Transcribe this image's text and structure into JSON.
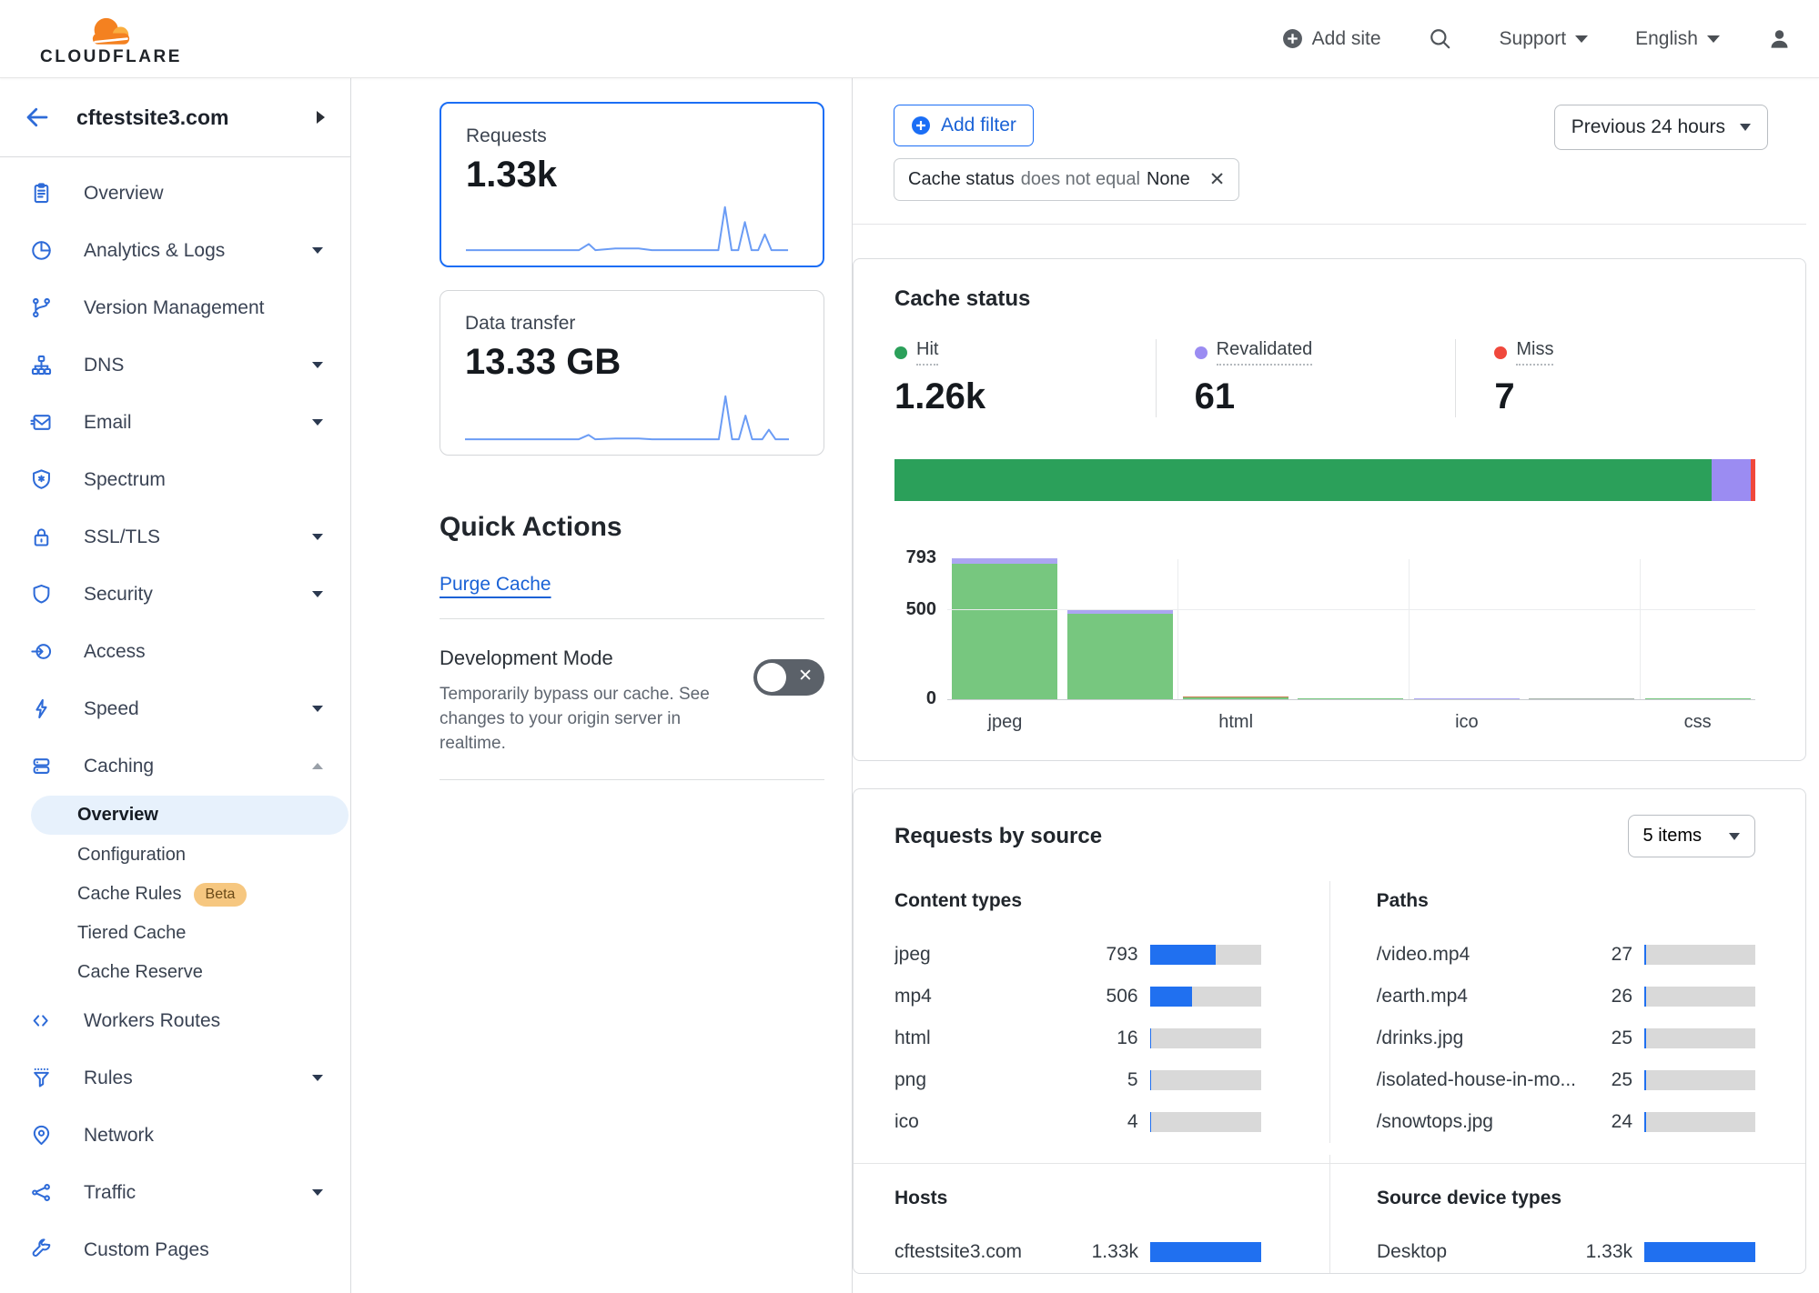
{
  "topnav": {
    "brand": "CLOUDFLARE",
    "add_site": "Add site",
    "support": "Support",
    "language": "English"
  },
  "sidebar": {
    "site_name": "cftestsite3.com",
    "items": [
      {
        "label": "Overview"
      },
      {
        "label": "Analytics & Logs"
      },
      {
        "label": "Version Management"
      },
      {
        "label": "DNS"
      },
      {
        "label": "Email"
      },
      {
        "label": "Spectrum"
      },
      {
        "label": "SSL/TLS"
      },
      {
        "label": "Security"
      },
      {
        "label": "Access"
      },
      {
        "label": "Speed"
      },
      {
        "label": "Caching"
      },
      {
        "label": "Workers Routes"
      },
      {
        "label": "Rules"
      },
      {
        "label": "Network"
      },
      {
        "label": "Traffic"
      },
      {
        "label": "Custom Pages"
      }
    ],
    "caching_children": [
      {
        "label": "Overview",
        "selected": true
      },
      {
        "label": "Configuration"
      },
      {
        "label": "Cache Rules",
        "badge": "Beta"
      },
      {
        "label": "Tiered Cache"
      },
      {
        "label": "Cache Reserve"
      }
    ]
  },
  "overview_cards": {
    "requests": {
      "label": "Requests",
      "value": "1.33k"
    },
    "data_transfer": {
      "label": "Data transfer",
      "value": "13.33 GB"
    }
  },
  "quick_actions": {
    "title": "Quick Actions",
    "purge_cache_label": "Purge Cache",
    "development_mode": {
      "title": "Development Mode",
      "description": "Temporarily bypass our cache. See changes to your origin server in realtime.",
      "state": "off"
    }
  },
  "filter_bar": {
    "add_filter_label": "Add filter",
    "chip": {
      "field": "Cache status",
      "operator": "does not equal",
      "value": "None"
    },
    "time_range_label": "Previous 24 hours"
  },
  "cache_status": {
    "title": "Cache status",
    "total": 1330,
    "stats": [
      {
        "label": "Hit",
        "value_display": "1.26k",
        "value": 1262,
        "color": "#2ba05a"
      },
      {
        "label": "Revalidated",
        "value_display": "61",
        "value": 61,
        "color": "#9b8cf2"
      },
      {
        "label": "Miss",
        "value_display": "7",
        "value": 7,
        "color": "#f0483c"
      }
    ]
  },
  "requests_by_source": {
    "title": "Requests by source",
    "items_dropdown_label": "5 items",
    "total_requests": 1330,
    "content_types": {
      "title": "Content types",
      "rows": [
        {
          "label": "jpeg",
          "value": 793
        },
        {
          "label": "mp4",
          "value": 506
        },
        {
          "label": "html",
          "value": 16
        },
        {
          "label": "png",
          "value": 5
        },
        {
          "label": "ico",
          "value": 4
        }
      ]
    },
    "paths": {
      "title": "Paths",
      "rows": [
        {
          "label": "/video.mp4",
          "value": 27
        },
        {
          "label": "/earth.mp4",
          "value": 26
        },
        {
          "label": "/drinks.jpg",
          "value": 25
        },
        {
          "label": "/isolated-house-in-mo...",
          "value": 25
        },
        {
          "label": "/snowtops.jpg",
          "value": 24
        }
      ]
    },
    "hosts": {
      "title": "Hosts",
      "rows": [
        {
          "label": "cftestsite3.com",
          "value_display": "1.33k",
          "value": 1330
        }
      ]
    },
    "device_types": {
      "title": "Source device types",
      "rows": [
        {
          "label": "Desktop",
          "value_display": "1.33k",
          "value": 1330
        }
      ]
    }
  },
  "chart_data": [
    {
      "type": "stacked-bar-horizontal",
      "title": "Cache status",
      "total": 1330,
      "series": [
        {
          "name": "Hit",
          "value": 1262,
          "color": "#2ba05a"
        },
        {
          "name": "Revalidated",
          "value": 61,
          "color": "#9b8cf2"
        },
        {
          "name": "Miss",
          "value": 7,
          "color": "#f0483c"
        }
      ]
    },
    {
      "type": "bar",
      "title": "Cache status by content type",
      "ylim": [
        0,
        793
      ],
      "yticks": [
        0,
        500,
        793
      ],
      "x_tick_labels": [
        "jpeg",
        "",
        "html",
        "",
        "ico",
        "",
        "css"
      ],
      "bars": [
        {
          "x": "jpeg",
          "segments": [
            {
              "name": "Hit",
              "value": 763,
              "color": "#77c77f"
            },
            {
              "name": "Revalidated",
              "value": 30,
              "color": "#aba6f2"
            }
          ]
        },
        {
          "x": "mp4",
          "segments": [
            {
              "name": "Hit",
              "value": 481,
              "color": "#77c77f"
            },
            {
              "name": "Revalidated",
              "value": 25,
              "color": "#aba6f2"
            }
          ]
        },
        {
          "x": "html",
          "segments": [
            {
              "name": "Hit",
              "value": 9,
              "color": "#77c77f"
            },
            {
              "name": "Miss",
              "value": 7,
              "color": "#c97b4f"
            }
          ]
        },
        {
          "x": "png",
          "segments": [
            {
              "name": "Hit",
              "value": 5,
              "color": "#77c77f"
            }
          ]
        },
        {
          "x": "ico",
          "segments": [
            {
              "name": "Revalidated",
              "value": 4,
              "color": "#aba6f2"
            }
          ]
        },
        {
          "x": "",
          "segments": [
            {
              "name": "Hit",
              "value": 2,
              "color": "#a9b6ad"
            }
          ]
        },
        {
          "x": "css",
          "segments": [
            {
              "name": "Hit",
              "value": 1,
              "color": "#77c77f"
            }
          ]
        }
      ]
    },
    {
      "type": "sparkline",
      "title": "Requests",
      "color": "#6b9cf5",
      "points": [
        [
          0,
          3
        ],
        [
          34,
          3
        ],
        [
          37,
          10
        ],
        [
          39,
          3
        ],
        [
          45,
          5
        ],
        [
          52,
          5
        ],
        [
          56,
          3
        ],
        [
          74,
          3
        ],
        [
          76,
          3
        ],
        [
          78,
          52
        ],
        [
          80,
          3
        ],
        [
          82,
          3
        ],
        [
          84,
          35
        ],
        [
          86,
          3
        ],
        [
          88,
          3
        ],
        [
          90,
          21
        ],
        [
          92,
          3
        ],
        [
          97,
          3
        ]
      ]
    },
    {
      "type": "sparkline",
      "title": "Data transfer",
      "color": "#6b9cf5",
      "points": [
        [
          0,
          3
        ],
        [
          34,
          3
        ],
        [
          37,
          8
        ],
        [
          39,
          3
        ],
        [
          45,
          4
        ],
        [
          52,
          4
        ],
        [
          56,
          3
        ],
        [
          74,
          3
        ],
        [
          76,
          3
        ],
        [
          78,
          52
        ],
        [
          80,
          3
        ],
        [
          82,
          3
        ],
        [
          84,
          30
        ],
        [
          86,
          3
        ],
        [
          89,
          3
        ],
        [
          91,
          14
        ],
        [
          93,
          3
        ],
        [
          97,
          3
        ]
      ]
    }
  ]
}
